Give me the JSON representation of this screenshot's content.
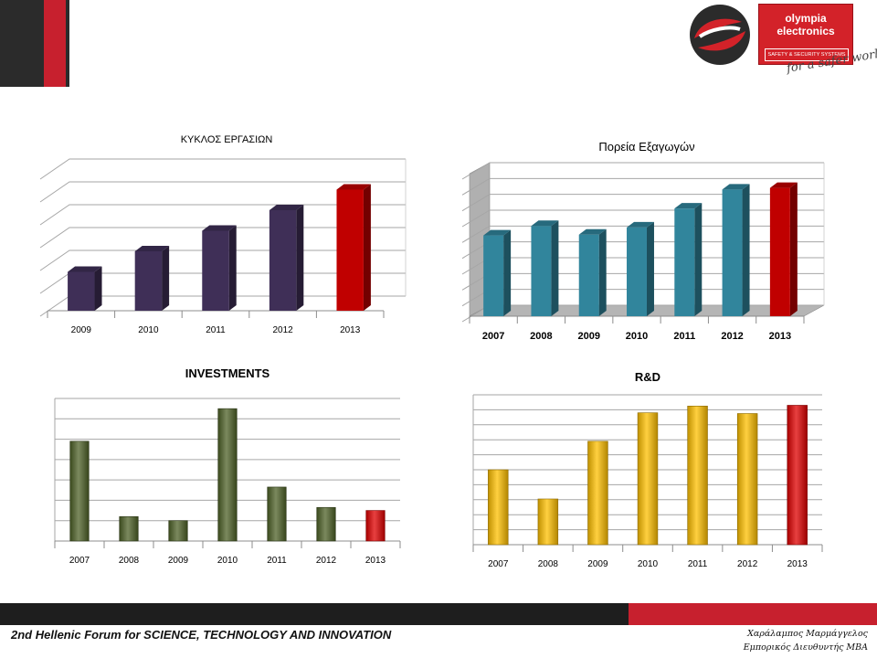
{
  "branding": {
    "name_line1": "olympia",
    "name_line2": "electronics",
    "tagline": "SAFETY & SECURITY SYSTEMS",
    "slogan": "for a safer world!",
    "red": "#d32229",
    "dark": "#2b2b2b"
  },
  "footer": {
    "forum": "2nd Hellenic Forum for SCIENCE, TECHNOLOGY AND INNOVATION",
    "author_name": "Χαράλαμπος Μαρμάγγελος",
    "author_title": "Εμπορικός Διευθυντής MBA"
  },
  "chart_data": [
    {
      "type": "bar",
      "title": "ΚΥΚΛΟΣ ΕΡΓΑΣΙΩΝ",
      "categories": [
        "2009",
        "2010",
        "2011",
        "2012",
        "2013"
      ],
      "values": [
        1.7,
        2.6,
        3.5,
        4.4,
        5.3
      ],
      "ylim": [
        0,
        6
      ],
      "grid": true,
      "color": "#3f2f57",
      "highlight_color": "#c00000"
    },
    {
      "type": "bar",
      "title": "Πορεία Εξαγωγών",
      "categories": [
        "2007",
        "2008",
        "2009",
        "2010",
        "2011",
        "2012",
        "2013"
      ],
      "values": [
        5.1,
        5.7,
        5.15,
        5.6,
        6.8,
        8.0,
        8.1
      ],
      "ylim": [
        0,
        9
      ],
      "grid": true,
      "color": "#31859c",
      "highlight_color": "#c00000"
    },
    {
      "type": "bar",
      "title": "INVESTMENTS",
      "categories": [
        "2007",
        "2008",
        "2009",
        "2010",
        "2011",
        "2012",
        "2013"
      ],
      "values": [
        4.9,
        1.2,
        1.0,
        6.5,
        2.65,
        1.65,
        1.5
      ],
      "ylim": [
        0,
        7
      ],
      "grid": true,
      "color": "#4f6228",
      "highlight_color": "#e00000"
    },
    {
      "type": "bar",
      "title": "R&D",
      "categories": [
        "2007",
        "2008",
        "2009",
        "2010",
        "2011",
        "2012",
        "2013"
      ],
      "values": [
        5.0,
        3.05,
        6.9,
        8.8,
        9.25,
        8.75,
        9.3
      ],
      "ylim": [
        0,
        10
      ],
      "grid": true,
      "color": "#ffc000",
      "highlight_color": "#e00000"
    }
  ]
}
